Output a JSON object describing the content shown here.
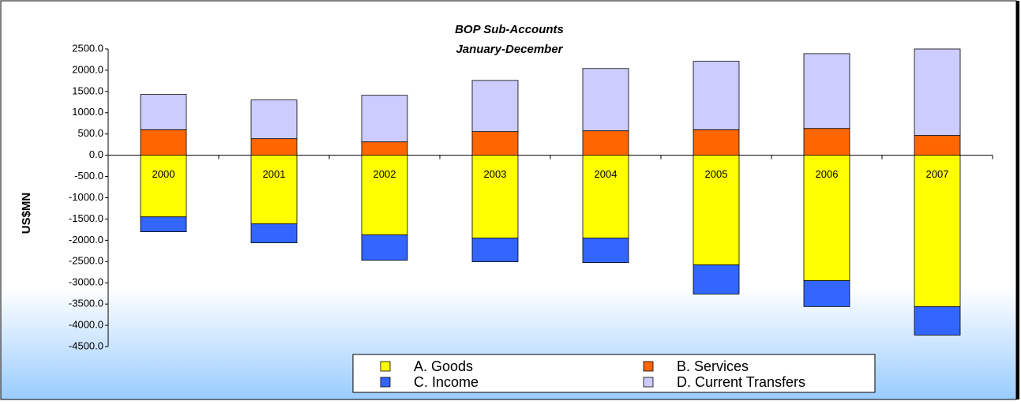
{
  "chart_data": {
    "type": "bar",
    "stacked": true,
    "title": "BOP Sub-Accounts",
    "subtitle": "January-December",
    "y_label": "US$MN",
    "categories": [
      "2000",
      "2001",
      "2002",
      "2003",
      "2004",
      "2005",
      "2006",
      "2007"
    ],
    "series": [
      {
        "name": "A. Goods",
        "color": "#ffff00",
        "values": [
          -1450,
          -1615,
          -1875,
          -1950,
          -1950,
          -2580,
          -2950,
          -3560
        ]
      },
      {
        "name": "B. Services",
        "color": "#ff6600",
        "values": [
          600,
          390,
          315,
          557,
          575,
          600,
          630,
          465
        ]
      },
      {
        "name": "C. Income",
        "color": "#3366ff",
        "values": [
          -350,
          -445,
          -595,
          -555,
          -575,
          -685,
          -610,
          -670
        ]
      },
      {
        "name": "D. Current Transfers",
        "color": "#ccccff",
        "values": [
          830,
          910,
          1095,
          1203,
          1465,
          1610,
          1760,
          2035
        ]
      }
    ],
    "ylim": [
      -4500,
      2500
    ],
    "yticks": [
      {
        "value": 2500,
        "label": "2500.0"
      },
      {
        "value": 2000,
        "label": "2000.0"
      },
      {
        "value": 1500,
        "label": "1500.0"
      },
      {
        "value": 1000,
        "label": "1000.0"
      },
      {
        "value": 500,
        "label": "500.0"
      },
      {
        "value": 0,
        "label": "0.0"
      },
      {
        "value": -500,
        "label": "-500.0"
      },
      {
        "value": -1000,
        "label": "-1000.0"
      },
      {
        "value": -1500,
        "label": "-1500.0"
      },
      {
        "value": -2000,
        "label": "-2000.0"
      },
      {
        "value": -2500,
        "label": "-2500.0"
      },
      {
        "value": -3000,
        "label": "-3000.0"
      },
      {
        "value": -3500,
        "label": "-3500.0"
      },
      {
        "value": -4000,
        "label": "-4000.0"
      },
      {
        "value": -4500,
        "label": "-4500.0"
      }
    ],
    "grid": false,
    "legend": "bottom"
  }
}
